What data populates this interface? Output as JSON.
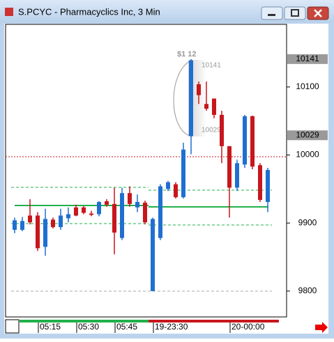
{
  "window": {
    "title": "S.PCYC - Pharmacyclics Inc, 3 Min"
  },
  "chart_data": {
    "type": "candlestick",
    "up_color": "#1f6fd0",
    "down_color": "#c8161d",
    "ylim": [
      9762,
      10192
    ],
    "yticks": [
      9800,
      9900,
      10000,
      10100
    ],
    "categories": [
      null,
      null,
      null,
      "05:15",
      null,
      null,
      null,
      null,
      "05:30",
      null,
      null,
      null,
      null,
      "05:45",
      null,
      null,
      null,
      null,
      "19-23:30",
      null,
      null,
      null,
      null,
      null,
      null,
      null,
      null,
      null,
      "20-00:00",
      null,
      null,
      null,
      null,
      null
    ],
    "open": [
      9890,
      9890,
      9911,
      9911,
      9865,
      9905,
      9894,
      9907,
      9923,
      9923,
      9914,
      9913,
      9932,
      9928,
      9878,
      9944,
      9923,
      9930,
      9800,
      9878,
      9950,
      9957,
      9938,
      10028,
      10104,
      10075,
      10083,
      10059,
      10013,
      9952,
      9986,
      10057,
      9985,
      9931
    ],
    "high": [
      9908,
      9909,
      9935,
      9916,
      9921,
      9908,
      9921,
      9923,
      9927,
      9925,
      9918,
      9932,
      9935,
      9952,
      9952,
      9954,
      9942,
      9933,
      9908,
      9957,
      9962,
      9960,
      10018,
      10141,
      10108,
      10108,
      10083,
      10065,
      10013,
      9993,
      10059,
      10058,
      9988,
      9981
    ],
    "low": [
      9885,
      9888,
      9898,
      9859,
      9852,
      9892,
      9890,
      9901,
      9910,
      9913,
      9910,
      9910,
      9924,
      9854,
      9875,
      9924,
      9916,
      9898,
      9800,
      9875,
      9947,
      9936,
      9936,
      10001,
      10075,
      10065,
      10054,
      9988,
      9908,
      9947,
      9981,
      9979,
      9931,
      9916
    ],
    "close": [
      9904,
      9903,
      9901,
      9863,
      9906,
      9894,
      9911,
      9913,
      9911,
      9915,
      9912,
      9931,
      9927,
      9886,
      9944,
      9928,
      9931,
      9901,
      9906,
      9954,
      9960,
      9938,
      10008,
      10139,
      10088,
      10068,
      10059,
      10013,
      9952,
      9988,
      10057,
      9983,
      9934,
      9978
    ],
    "price_markers": [
      10141,
      10029
    ],
    "annotations": [
      "$1 12",
      "10141",
      "10029"
    ]
  }
}
